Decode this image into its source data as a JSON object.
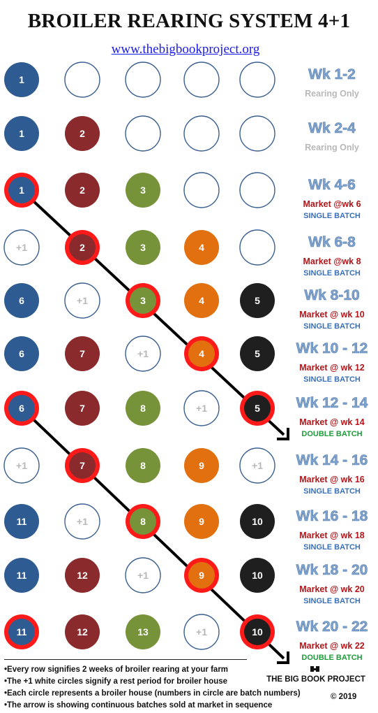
{
  "header": {
    "title": "BROILER REARING SYSTEM 4+1",
    "link": "www.thebigbookproject.org"
  },
  "colors": {
    "house1": "#2e5b91",
    "house2": "#8b2a2c",
    "house3": "#76933a",
    "house4": "#e2700f",
    "house5": "#1f1f1f",
    "market_ring": "#ff1a1a",
    "week_label": "#7fa3cf",
    "market_text": "#b0161a",
    "single_batch": "#3a6fb5",
    "double_batch": "#1f9a3a",
    "rest_text": "#b8b8b8",
    "empty_outline": "#3a5f8f"
  },
  "rows": [
    {
      "cells": [
        "1",
        "",
        "",
        "",
        ""
      ],
      "market": [],
      "week": "Wk 1-2",
      "line1": "Rearing Only",
      "line2": ""
    },
    {
      "cells": [
        "1",
        "2",
        "",
        "",
        ""
      ],
      "market": [],
      "week": "Wk 2-4",
      "line1": "Rearing Only",
      "line2": ""
    },
    {
      "cells": [
        "1",
        "2",
        "3",
        "",
        ""
      ],
      "market": [
        0
      ],
      "week": "Wk 4-6",
      "line1": "Market @wk 6",
      "line2": "SINGLE BATCH"
    },
    {
      "cells": [
        "+1",
        "2",
        "3",
        "4",
        ""
      ],
      "market": [
        1
      ],
      "week": "Wk 6-8",
      "line1": "Market @wk 8",
      "line2": "SINGLE BATCH"
    },
    {
      "cells": [
        "6",
        "+1",
        "3",
        "4",
        "5"
      ],
      "market": [
        2
      ],
      "week": "Wk 8-10",
      "line1": "Market @ wk 10",
      "line2": "SINGLE BATCH"
    },
    {
      "cells": [
        "6",
        "7",
        "+1",
        "4",
        "5"
      ],
      "market": [
        3
      ],
      "week": "Wk 10 - 12",
      "line1": "Market @ wk 12",
      "line2": "SINGLE BATCH"
    },
    {
      "cells": [
        "6",
        "7",
        "8",
        "+1",
        "5"
      ],
      "market": [
        0,
        4
      ],
      "week": "Wk 12 - 14",
      "line1": "Market @ wk 14",
      "line2": "DOUBLE BATCH"
    },
    {
      "cells": [
        "+1",
        "7",
        "8",
        "9",
        "+1"
      ],
      "market": [
        1
      ],
      "week": "Wk 14 - 16",
      "line1": "Market @ wk 16",
      "line2": "SINGLE BATCH"
    },
    {
      "cells": [
        "11",
        "+1",
        "8",
        "9",
        "10"
      ],
      "market": [
        2
      ],
      "week": "Wk 16 - 18",
      "line1": "Market @ wk 18",
      "line2": "SINGLE BATCH"
    },
    {
      "cells": [
        "11",
        "12",
        "+1",
        "9",
        "10"
      ],
      "market": [
        3
      ],
      "week": "Wk 18 - 20",
      "line1": "Market @ wk 20",
      "line2": "SINGLE BATCH"
    },
    {
      "cells": [
        "11",
        "12",
        "13",
        "+1",
        "10"
      ],
      "market": [
        0,
        4
      ],
      "week": "Wk 20 - 22",
      "line1": "Market @ wk 22",
      "line2": "DOUBLE BATCH"
    }
  ],
  "notes": [
    "•Every row signifies 2 weeks of broiler rearing at your farm",
    "•The +1 white circles signify a rest period for broiler house",
    "•Each circle represents a broiler house (numbers in circle are batch numbers)",
    "•The arrow is showing continuous batches sold at market in sequence"
  ],
  "footer": {
    "brand": "THE BIG BOOK PROJECT",
    "copyright": "© 2019"
  }
}
